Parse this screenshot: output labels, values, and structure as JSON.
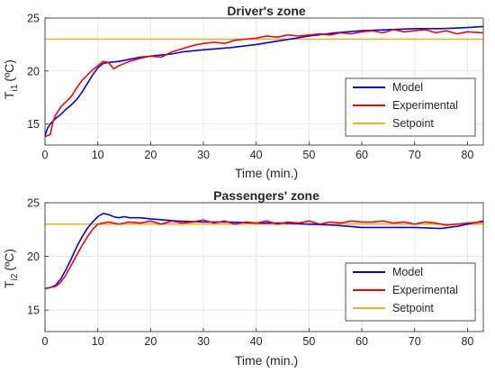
{
  "chart_data": [
    {
      "type": "line",
      "title": "Driver's zone",
      "xlabel": "Time (min.)",
      "ylabel_main": "T",
      "ylabel_sub": "i1",
      "ylabel_unit": "(ºC)",
      "xlim": [
        0,
        83
      ],
      "ylim": [
        13,
        25
      ],
      "xticks": [
        0,
        10,
        20,
        30,
        40,
        50,
        60,
        70,
        80
      ],
      "yticks": [
        15,
        20,
        25
      ],
      "grid": true,
      "legend_position": "bottom-right",
      "series": [
        {
          "name": "Model",
          "color": "#0000ff",
          "x": [
            0,
            0.5,
            1,
            2,
            3,
            4,
            5,
            6,
            7,
            8,
            9,
            10,
            11,
            12,
            14,
            16,
            18,
            20,
            22,
            24,
            26,
            28,
            30,
            35,
            40,
            45,
            50,
            55,
            60,
            65,
            70,
            75,
            80,
            83
          ],
          "y": [
            13.9,
            14.6,
            15.0,
            15.5,
            15.9,
            16.4,
            16.8,
            17.3,
            18.0,
            18.8,
            19.6,
            20.3,
            20.7,
            20.8,
            20.9,
            21.1,
            21.3,
            21.4,
            21.5,
            21.6,
            21.8,
            21.9,
            22.0,
            22.2,
            22.5,
            22.9,
            23.3,
            23.6,
            23.8,
            23.9,
            24.0,
            24.0,
            24.1,
            24.2
          ]
        },
        {
          "name": "Experimental",
          "color": "#ff0000",
          "x": [
            0,
            0.5,
            1,
            1.5,
            2,
            3,
            4,
            5,
            6,
            7,
            8,
            9,
            10,
            11,
            12,
            13,
            14,
            16,
            18,
            20,
            22,
            24,
            26,
            28,
            30,
            32,
            34,
            36,
            38,
            40,
            42,
            44,
            46,
            48,
            50,
            52,
            54,
            56,
            58,
            60,
            62,
            64,
            66,
            68,
            70,
            72,
            74,
            76,
            78,
            80,
            83
          ],
          "y": [
            13.8,
            13.9,
            14.0,
            15.2,
            15.8,
            16.6,
            17.1,
            17.6,
            18.4,
            19.1,
            19.6,
            20.1,
            20.5,
            20.9,
            20.8,
            20.2,
            20.5,
            20.9,
            21.2,
            21.4,
            21.3,
            21.8,
            22.1,
            22.4,
            22.6,
            22.7,
            22.6,
            22.9,
            23.0,
            23.1,
            23.3,
            23.2,
            23.4,
            23.3,
            23.4,
            23.5,
            23.4,
            23.6,
            23.5,
            23.7,
            23.8,
            23.6,
            23.9,
            23.7,
            23.8,
            23.9,
            23.6,
            23.8,
            23.5,
            23.7,
            23.6
          ]
        },
        {
          "name": "Setpoint",
          "color": "#edb120",
          "x": [
            0,
            83
          ],
          "y": [
            23,
            23
          ]
        }
      ]
    },
    {
      "type": "line",
      "title": "Passengers' zone",
      "xlabel": "Time (min.)",
      "ylabel_main": "T",
      "ylabel_sub": "i2",
      "ylabel_unit": "(ºC)",
      "xlim": [
        0,
        83
      ],
      "ylim": [
        13,
        25
      ],
      "xticks": [
        0,
        10,
        20,
        30,
        40,
        50,
        60,
        70,
        80
      ],
      "yticks": [
        15,
        20,
        25
      ],
      "grid": true,
      "legend_position": "bottom-right",
      "series": [
        {
          "name": "Model",
          "color": "#0000ff",
          "x": [
            0,
            1,
            2,
            3,
            4,
            5,
            6,
            7,
            8,
            9,
            10,
            11,
            12,
            13,
            14,
            15,
            16,
            18,
            20,
            25,
            30,
            35,
            40,
            45,
            50,
            55,
            60,
            65,
            70,
            75,
            78,
            80,
            83
          ],
          "y": [
            17.0,
            17.1,
            17.3,
            17.9,
            18.8,
            19.8,
            20.9,
            21.8,
            22.6,
            23.2,
            23.7,
            24.0,
            23.9,
            23.7,
            23.6,
            23.7,
            23.6,
            23.6,
            23.5,
            23.3,
            23.2,
            23.2,
            23.1,
            23.1,
            23.0,
            22.9,
            22.7,
            22.7,
            22.7,
            22.6,
            22.8,
            23.0,
            23.3
          ]
        },
        {
          "name": "Experimental",
          "color": "#ff0000",
          "x": [
            0,
            1,
            2,
            3,
            4,
            5,
            6,
            7,
            8,
            9,
            10,
            11,
            12,
            14,
            16,
            18,
            20,
            22,
            24,
            26,
            28,
            30,
            32,
            34,
            36,
            38,
            40,
            42,
            44,
            46,
            48,
            50,
            52,
            54,
            56,
            58,
            60,
            62,
            64,
            66,
            68,
            70,
            72,
            74,
            76,
            78,
            80,
            83
          ],
          "y": [
            17.0,
            17.1,
            17.2,
            17.6,
            18.3,
            19.2,
            20.1,
            21.0,
            21.8,
            22.5,
            23.0,
            23.1,
            23.2,
            23.0,
            23.2,
            23.1,
            23.3,
            23.0,
            23.3,
            23.1,
            23.2,
            23.4,
            23.1,
            23.3,
            23.0,
            23.2,
            23.1,
            23.3,
            23.0,
            23.2,
            23.1,
            23.3,
            23.0,
            23.2,
            23.1,
            23.3,
            23.2,
            23.2,
            23.3,
            23.1,
            23.2,
            23.0,
            23.2,
            23.1,
            22.9,
            23.0,
            23.1,
            23.2
          ]
        },
        {
          "name": "Setpoint",
          "color": "#edb120",
          "x": [
            0,
            83
          ],
          "y": [
            23,
            23
          ]
        }
      ]
    }
  ]
}
